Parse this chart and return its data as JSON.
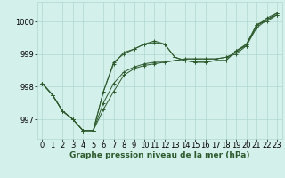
{
  "background_color": "#d4f0eb",
  "grid_color": "#b0d8d0",
  "line_color": "#2d5a2d",
  "xlabel": "Graphe pression niveau de la mer (hPa)",
  "xlim": [
    -0.5,
    23.5
  ],
  "ylim": [
    996.4,
    1000.6
  ],
  "yticks": [
    997,
    998,
    999,
    1000
  ],
  "xticks": [
    0,
    1,
    2,
    3,
    4,
    5,
    6,
    7,
    8,
    9,
    10,
    11,
    12,
    13,
    14,
    15,
    16,
    17,
    18,
    19,
    20,
    21,
    22,
    23
  ],
  "series1": [
    998.1,
    997.75,
    997.25,
    997.0,
    996.65,
    996.65,
    997.85,
    998.75,
    999.0,
    999.15,
    999.3,
    999.35,
    999.3,
    998.9,
    998.8,
    998.75,
    998.75,
    998.8,
    998.8,
    999.1,
    999.3,
    999.9,
    1000.05,
    1000.2
  ],
  "series2": [
    998.1,
    997.75,
    997.25,
    997.0,
    996.65,
    996.65,
    997.5,
    998.1,
    998.45,
    998.6,
    998.7,
    998.75,
    998.75,
    998.8,
    998.85,
    998.85,
    998.85,
    998.85,
    998.9,
    999.05,
    999.3,
    999.85,
    1000.1,
    1000.25
  ],
  "series3": [
    998.1,
    997.75,
    997.25,
    997.0,
    996.65,
    996.65,
    997.3,
    997.85,
    998.35,
    998.55,
    998.65,
    998.7,
    998.75,
    998.8,
    998.85,
    998.85,
    998.85,
    998.85,
    998.9,
    999.0,
    999.25,
    999.8,
    1000.05,
    1000.25
  ],
  "series4": [
    998.1,
    997.75,
    997.25,
    997.0,
    996.65,
    996.65,
    997.85,
    998.7,
    999.05,
    999.15,
    999.3,
    999.4,
    999.3,
    998.9,
    998.8,
    998.75,
    998.75,
    998.8,
    998.8,
    999.1,
    999.25,
    999.9,
    1000.0,
    1000.2
  ],
  "label_fontsize": 6.5,
  "tick_fontsize": 6.0
}
